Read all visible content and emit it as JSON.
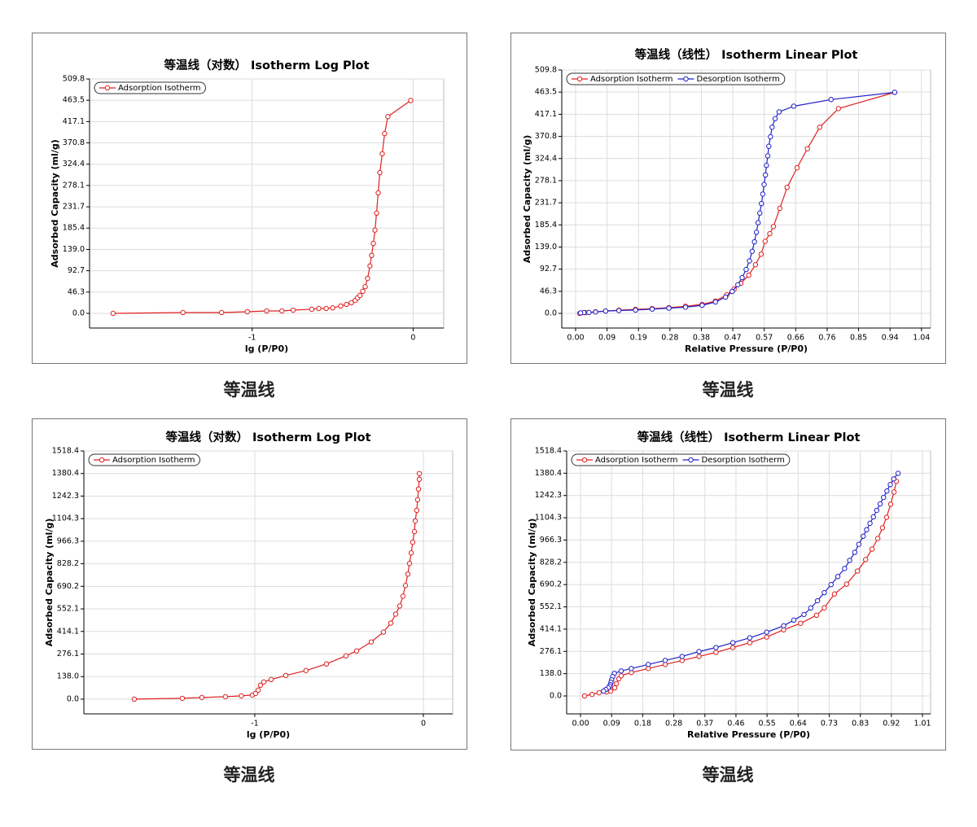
{
  "chart_data": [
    {
      "type": "line",
      "title": "等温线（对数） Isotherm Log Plot",
      "caption": "等温线",
      "x_label": "lg (P/P0)",
      "y_label": "Adsorbed Capacity (ml/g)",
      "xlim": [
        -2.01,
        0.19
      ],
      "xticks": [
        -1,
        0
      ],
      "ylim": [
        -31.9,
        509.8
      ],
      "yticks": [
        {
          "value": 0,
          "label": "0.0"
        },
        46.3,
        92.7,
        {
          "value": 139,
          "label": "139.0"
        },
        185.4,
        231.7,
        278.1,
        324.4,
        370.8,
        417.1,
        463.5,
        509.8
      ],
      "grid": true,
      "legend": "upper left",
      "series": [
        {
          "name": "Adsorption Isotherm",
          "color": "#e02020",
          "x": [
            -1.864,
            -1.43,
            -1.19,
            -1.03,
            -0.91,
            -0.815,
            -0.745,
            -0.63,
            -0.586,
            -0.54,
            -0.5,
            -0.45,
            -0.414,
            -0.384,
            -0.36,
            -0.345,
            -0.33,
            -0.313,
            -0.298,
            -0.283,
            -0.268,
            -0.258,
            -0.247,
            -0.237,
            -0.227,
            -0.217,
            -0.207,
            -0.192,
            -0.177,
            -0.157,
            -0.015
          ],
          "values": [
            0,
            1.8,
            1.8,
            3.5,
            5.3,
            5.3,
            7,
            9,
            10.6,
            10.6,
            12,
            16,
            19.5,
            23,
            28,
            34,
            39,
            48,
            58,
            76,
            103,
            126,
            152,
            181,
            218,
            262,
            306,
            347,
            391,
            428,
            463
          ]
        }
      ]
    },
    {
      "type": "line",
      "title": "等温线（线性） Isotherm Linear Plot",
      "caption": "等温线",
      "x_label": "Relative Pressure (P/P0)",
      "y_label": "Adsorbed Capacity (ml/g)",
      "xlim": [
        -0.0415,
        1.0658
      ],
      "xticks": [
        {
          "value": 0,
          "label": "0.00"
        },
        {
          "value": 0.0944,
          "label": "0.09"
        },
        {
          "value": 0.1888,
          "label": "0.19"
        },
        {
          "value": 0.2832,
          "label": "0.28"
        },
        {
          "value": 0.3776,
          "label": "0.38"
        },
        {
          "value": 0.472,
          "label": "0.47"
        },
        {
          "value": 0.5664,
          "label": "0.57"
        },
        {
          "value": 0.6608,
          "label": "0.66"
        },
        {
          "value": 0.7552,
          "label": "0.76"
        },
        {
          "value": 0.8496,
          "label": "0.85"
        },
        {
          "value": 0.944,
          "label": "0.94"
        },
        {
          "value": 1.0384,
          "label": "1.04"
        }
      ],
      "ylim": [
        -30.6,
        509.8
      ],
      "yticks": [
        {
          "value": 0,
          "label": "0.0"
        },
        46.3,
        92.7,
        {
          "value": 139,
          "label": "139.0"
        },
        185.4,
        231.7,
        278.1,
        324.4,
        370.8,
        417.1,
        463.5,
        509.8
      ],
      "grid": true,
      "legend": "upper left",
      "series": [
        {
          "name": "Adsorption Isotherm",
          "color": "#e02020",
          "x": [
            0.012,
            0.03,
            0.06,
            0.09,
            0.13,
            0.18,
            0.23,
            0.28,
            0.33,
            0.38,
            0.42,
            0.454,
            0.476,
            0.496,
            0.52,
            0.54,
            0.557,
            0.569,
            0.583,
            0.594,
            0.613,
            0.635,
            0.665,
            0.696,
            0.733,
            0.789,
            0.958
          ],
          "values": [
            0,
            1.7,
            3.4,
            5,
            6.8,
            8.5,
            10,
            12,
            15,
            19,
            26,
            39,
            51,
            63,
            80,
            102,
            124,
            151,
            167,
            182,
            220,
            264,
            305,
            345,
            390,
            429,
            463
          ]
        },
        {
          "name": "Desorption Isotherm",
          "color": "#2020c8",
          "x": [
            0.958,
            0.767,
            0.655,
            0.611,
            0.599,
            0.59,
            0.585,
            0.58,
            0.577,
            0.573,
            0.57,
            0.566,
            0.562,
            0.558,
            0.553,
            0.548,
            0.543,
            0.537,
            0.53,
            0.522,
            0.512,
            0.5,
            0.487,
            0.47,
            0.45,
            0.42,
            0.38,
            0.33,
            0.28,
            0.23,
            0.18,
            0.13,
            0.09,
            0.06,
            0.04,
            0.025,
            0.015
          ],
          "values": [
            463,
            448,
            434,
            422,
            408,
            390,
            370,
            350,
            330,
            310,
            290,
            270,
            250,
            230,
            210,
            190,
            170,
            150,
            130,
            110,
            92,
            75,
            60,
            46,
            34,
            24,
            17,
            13,
            11,
            9,
            7,
            6,
            5,
            3,
            2,
            1.7,
            1
          ]
        }
      ]
    },
    {
      "type": "line",
      "title": "等温线（对数） Isotherm Log Plot",
      "caption": "等温线",
      "x_label": "lg (P/P0)",
      "y_label": "Adsorbed Capacity (ml/g)",
      "xlim": [
        -2.014,
        0.174
      ],
      "xticks": [
        -1,
        0
      ],
      "ylim": [
        -90,
        1518.4
      ],
      "yticks": [
        {
          "value": 0,
          "label": "0.0"
        },
        {
          "value": 138,
          "label": "138.0"
        },
        276.1,
        414.1,
        552.1,
        690.2,
        828.2,
        966.3,
        1104.3,
        1242.3,
        1380.4,
        1518.4
      ],
      "grid": true,
      "legend": "upper left",
      "series": [
        {
          "name": "Adsorption Isotherm",
          "color": "#e02020",
          "x": [
            -1.715,
            -1.43,
            -1.314,
            -1.174,
            -1.08,
            -1.014,
            -0.995,
            -0.98,
            -0.966,
            -0.947,
            -0.903,
            -0.816,
            -0.696,
            -0.575,
            -0.459,
            -0.396,
            -0.309,
            -0.237,
            -0.193,
            -0.164,
            -0.14,
            -0.121,
            -0.106,
            -0.092,
            -0.082,
            -0.072,
            -0.063,
            -0.053,
            -0.048,
            -0.039,
            -0.034,
            -0.029,
            -0.024,
            -0.024
          ],
          "values": [
            0,
            5,
            10,
            15,
            20,
            25,
            35,
            55,
            85,
            105,
            120,
            145,
            175,
            215,
            265,
            295,
            350,
            410,
            465,
            520,
            570,
            630,
            695,
            765,
            830,
            895,
            960,
            1025,
            1090,
            1155,
            1220,
            1285,
            1345,
            1380
          ]
        }
      ]
    },
    {
      "type": "line",
      "title": "等温线（线性） Isotherm Linear Plot",
      "caption": "等温线",
      "x_label": "Relative Pressure (P/P0)",
      "y_label": "Adsorbed Capacity (ml/g)",
      "xlim": [
        -0.041,
        1.034
      ],
      "xticks": [
        {
          "value": 0,
          "label": "0.00"
        },
        {
          "value": 0.0918,
          "label": "0.09"
        },
        {
          "value": 0.1836,
          "label": "0.18"
        },
        {
          "value": 0.2755,
          "label": "0.28"
        },
        {
          "value": 0.3673,
          "label": "0.37"
        },
        {
          "value": 0.4591,
          "label": "0.46"
        },
        {
          "value": 0.5509,
          "label": "0.55"
        },
        {
          "value": 0.6427,
          "label": "0.64"
        },
        {
          "value": 0.7345,
          "label": "0.73"
        },
        {
          "value": 0.8264,
          "label": "0.83"
        },
        {
          "value": 0.9182,
          "label": "0.92"
        },
        1.01
      ],
      "ylim": [
        -111,
        1518.4
      ],
      "yticks": [
        {
          "value": 0,
          "label": "0.0"
        },
        {
          "value": 138,
          "label": "138.0"
        },
        276.1,
        414.1,
        552.1,
        690.2,
        828.2,
        966.3,
        1104.3,
        1242.3,
        1380.4,
        1518.4
      ],
      "grid": true,
      "legend": "upper left",
      "series": [
        {
          "name": "Adsorption Isotherm",
          "color": "#e02020",
          "x": [
            0.012,
            0.034,
            0.055,
            0.077,
            0.089,
            0.101,
            0.106,
            0.113,
            0.12,
            0.15,
            0.2,
            0.25,
            0.3,
            0.35,
            0.4,
            0.45,
            0.5,
            0.55,
            0.6,
            0.65,
            0.697,
            0.72,
            0.75,
            0.786,
            0.818,
            0.842,
            0.861,
            0.878,
            0.892,
            0.904,
            0.916,
            0.926,
            0.933
          ],
          "values": [
            0,
            10,
            20,
            25,
            30,
            50,
            76,
            106,
            125,
            145,
            170,
            195,
            220,
            245,
            270,
            300,
            330,
            365,
            410,
            450,
            500,
            546,
            632,
            693,
            774,
            845,
            910,
            976,
            1042,
            1107,
            1188,
            1264,
            1330
          ]
        },
        {
          "name": "Desorption Isotherm",
          "color": "#2020c8",
          "x": [
            0.938,
            0.925,
            0.915,
            0.905,
            0.895,
            0.885,
            0.875,
            0.865,
            0.855,
            0.845,
            0.835,
            0.822,
            0.81,
            0.795,
            0.78,
            0.76,
            0.74,
            0.72,
            0.7,
            0.68,
            0.66,
            0.63,
            0.6,
            0.55,
            0.5,
            0.45,
            0.4,
            0.35,
            0.3,
            0.25,
            0.2,
            0.15,
            0.12,
            0.1,
            0.095,
            0.092,
            0.09,
            0.088,
            0.086,
            0.082,
            0.075,
            0.068
          ],
          "values": [
            1380,
            1345,
            1310,
            1270,
            1230,
            1190,
            1150,
            1110,
            1070,
            1030,
            990,
            940,
            890,
            840,
            790,
            740,
            690,
            640,
            590,
            545,
            505,
            470,
            435,
            395,
            360,
            330,
            300,
            275,
            245,
            220,
            195,
            170,
            155,
            140,
            120,
            100,
            85,
            70,
            60,
            50,
            40,
            30
          ]
        }
      ]
    }
  ]
}
